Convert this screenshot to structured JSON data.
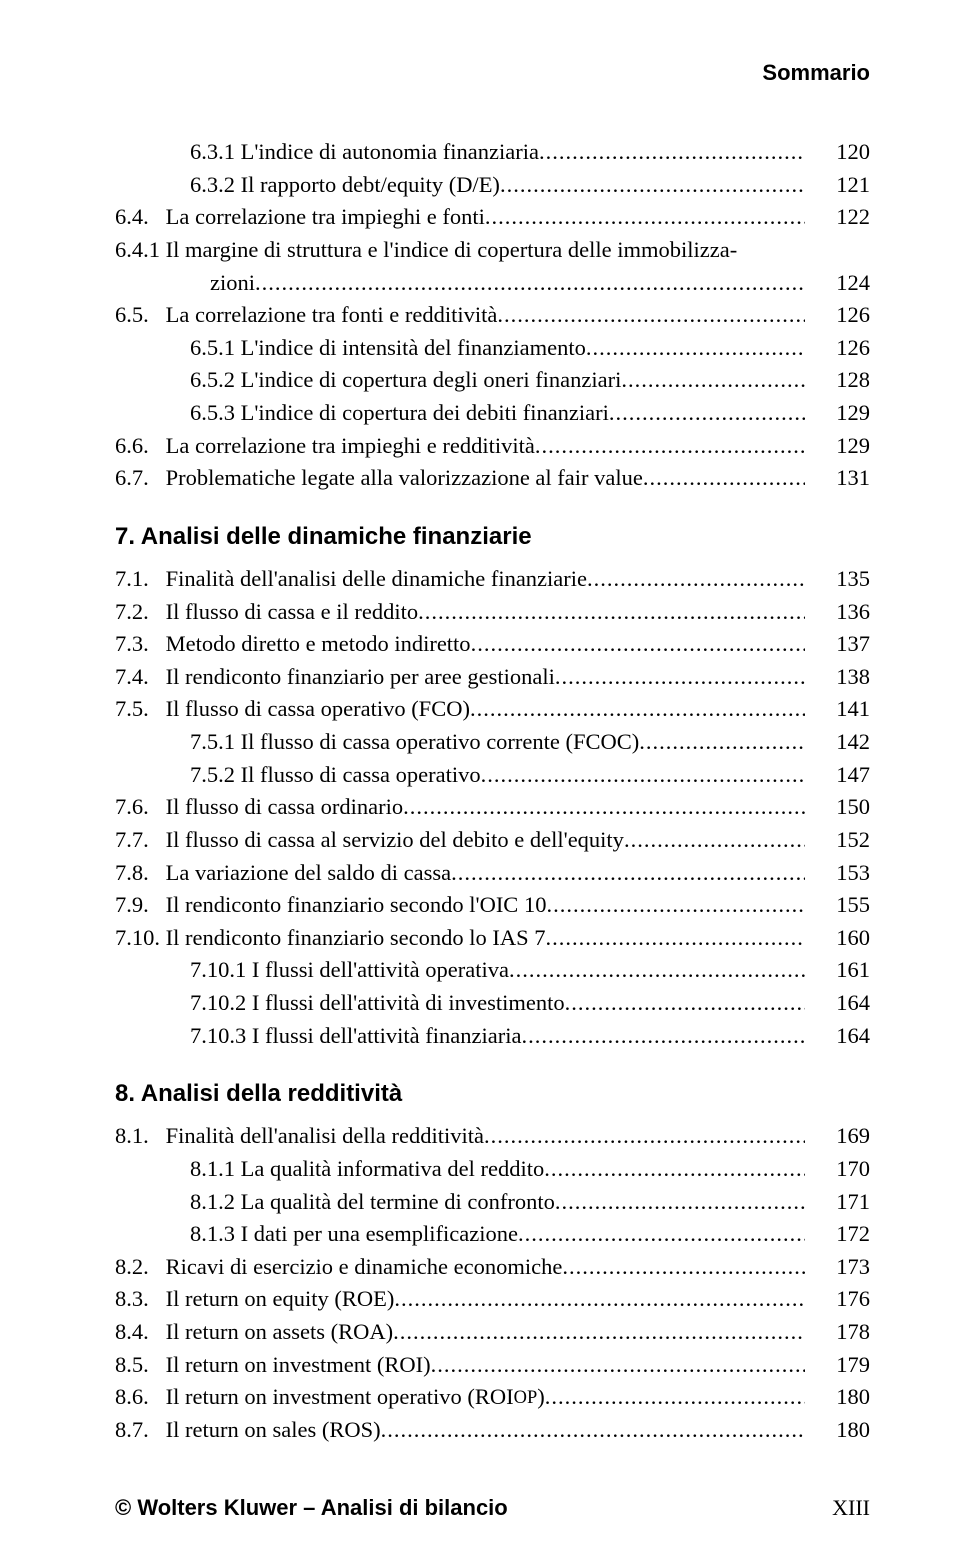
{
  "running_head": "Sommario",
  "blocks": [
    {
      "type": "line",
      "indent": 75,
      "num": "6.3.1",
      "title": " L'indice di autonomia finanziaria",
      "page": "120"
    },
    {
      "type": "line",
      "indent": 75,
      "num": "6.3.2",
      "title": " Il rapporto debt/equity (D/E)",
      "page": "121"
    },
    {
      "type": "line",
      "indent": 0,
      "num": "6.4.   ",
      "title": "La correlazione tra impieghi e fonti",
      "page": "122"
    },
    {
      "type": "wrap",
      "indent": 0,
      "num": "6.4.1 ",
      "title_first": "Il margine di struttura e l'indice di copertura delle immobilizza-",
      "title_rest": "zioni",
      "rest_indent": 95,
      "page": "124"
    },
    {
      "type": "line",
      "indent": 0,
      "num": "6.5.   ",
      "title": "La correlazione tra fonti e redditività",
      "page": "126"
    },
    {
      "type": "line",
      "indent": 75,
      "num": "6.5.1",
      "title": " L'indice di intensità del finanziamento",
      "page": "126"
    },
    {
      "type": "line",
      "indent": 75,
      "num": "6.5.2",
      "title": " L'indice di copertura degli oneri finanziari",
      "page": "128"
    },
    {
      "type": "line",
      "indent": 75,
      "num": "6.5.3",
      "title": " L'indice di copertura dei debiti finanziari",
      "page": "129"
    },
    {
      "type": "line",
      "indent": 0,
      "num": "6.6.   ",
      "title": "La correlazione tra impieghi e redditività",
      "page": "129"
    },
    {
      "type": "line",
      "indent": 0,
      "num": "6.7.   ",
      "title": "Problematiche legate alla valorizzazione al fair value",
      "page": "131"
    },
    {
      "type": "heading",
      "text": "7.  Analisi delle dinamiche finanziarie"
    },
    {
      "type": "line",
      "indent": 0,
      "num": "7.1.   ",
      "title": "Finalità dell'analisi delle dinamiche finanziarie",
      "page": "135"
    },
    {
      "type": "line",
      "indent": 0,
      "num": "7.2.   ",
      "title": "Il flusso di cassa e il reddito",
      "page": "136"
    },
    {
      "type": "line",
      "indent": 0,
      "num": "7.3.   ",
      "title": "Metodo diretto e metodo indiretto",
      "page": "137"
    },
    {
      "type": "line",
      "indent": 0,
      "num": "7.4.   ",
      "title": "Il rendiconto finanziario per aree gestionali",
      "page": "138"
    },
    {
      "type": "line",
      "indent": 0,
      "num": "7.5.   ",
      "title": "Il flusso di cassa operativo (FCO)",
      "page": "141"
    },
    {
      "type": "line",
      "indent": 75,
      "num": "7.5.1",
      "title": " Il flusso di cassa operativo corrente (FCOC)",
      "page": "142"
    },
    {
      "type": "line",
      "indent": 75,
      "num": "7.5.2",
      "title": " Il flusso di cassa operativo",
      "page": "147"
    },
    {
      "type": "line",
      "indent": 0,
      "num": "7.6.   ",
      "title": "Il flusso di cassa ordinario",
      "page": "150"
    },
    {
      "type": "line",
      "indent": 0,
      "num": "7.7.   ",
      "title": "Il flusso di cassa al servizio del debito e dell'equity",
      "page": "152"
    },
    {
      "type": "line",
      "indent": 0,
      "num": "7.8.   ",
      "title": "La variazione del saldo di cassa",
      "page": "153"
    },
    {
      "type": "line",
      "indent": 0,
      "num": "7.9.   ",
      "title": "Il rendiconto finanziario secondo l'OIC 10",
      "page": "155"
    },
    {
      "type": "line",
      "indent": 0,
      "num": "7.10. ",
      "title": "Il rendiconto finanziario secondo lo IAS 7",
      "page": "160"
    },
    {
      "type": "line",
      "indent": 75,
      "num": "7.10.1",
      "title": " I flussi dell'attività operativa",
      "page": "161"
    },
    {
      "type": "line",
      "indent": 75,
      "num": "7.10.2",
      "title": " I flussi dell'attività di investimento",
      "page": "164"
    },
    {
      "type": "line",
      "indent": 75,
      "num": "7.10.3",
      "title": " I flussi dell'attività finanziaria",
      "page": "164"
    },
    {
      "type": "heading",
      "text": "8.  Analisi della redditività"
    },
    {
      "type": "line",
      "indent": 0,
      "num": "8.1.   ",
      "title": "Finalità dell'analisi della redditività",
      "page": "169"
    },
    {
      "type": "line",
      "indent": 75,
      "num": "8.1.1",
      "title": " La qualità informativa del reddito",
      "page": "170"
    },
    {
      "type": "line",
      "indent": 75,
      "num": "8.1.2",
      "title": " La qualità del termine di confronto",
      "page": "171"
    },
    {
      "type": "line",
      "indent": 75,
      "num": "8.1.3",
      "title": " I dati per una esemplificazione",
      "page": "172"
    },
    {
      "type": "line",
      "indent": 0,
      "num": "8.2.   ",
      "title": "Ricavi di esercizio e dinamiche economiche",
      "page": "173"
    },
    {
      "type": "line",
      "indent": 0,
      "num": "8.3.   ",
      "title": "Il return on equity (ROE)",
      "page": "176"
    },
    {
      "type": "line",
      "indent": 0,
      "num": "8.4.   ",
      "title": "Il return on assets (ROA)",
      "page": "178"
    },
    {
      "type": "line",
      "indent": 0,
      "num": "8.5.   ",
      "title": "Il return on investment (ROI)",
      "page": "179"
    },
    {
      "type": "line",
      "indent": 0,
      "num": "8.6.   ",
      "title_html": "Il return on investment operativo (ROI<span class=\"smallcaps\">OP</span>)",
      "page": "180"
    },
    {
      "type": "line",
      "indent": 0,
      "num": "8.7.   ",
      "title": "Il return on sales (ROS)",
      "page": "180"
    }
  ],
  "footer_left": "© Wolters Kluwer – Analisi di bilancio",
  "footer_right": "XIII"
}
